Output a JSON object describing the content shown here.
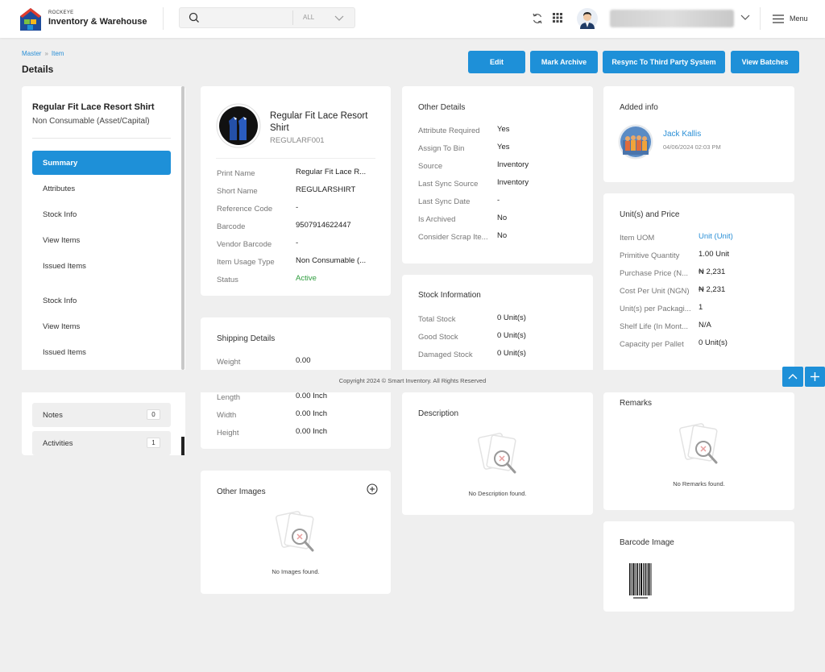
{
  "header": {
    "brand_sub": "ROCKEYE",
    "brand_name": "Inventory & Warehouse",
    "search_placeholder": "",
    "search_scope": "ALL",
    "menu_label": "Menu"
  },
  "breadcrumb": {
    "root": "Master",
    "current": "Item"
  },
  "page_title": "Details",
  "actions": {
    "edit": "Edit",
    "archive": "Mark Archive",
    "resync": "Resync To Third Party System",
    "batches": "View Batches"
  },
  "sidebar": {
    "title": "Regular Fit Lace Resort Shirt",
    "subtitle": "Non Consumable (Asset/Capital)",
    "items": [
      "Summary",
      "Attributes",
      "Stock Info",
      "View Items",
      "Issued Items",
      "Stock Info",
      "View Items",
      "Issued Items"
    ],
    "notes_label": "Notes",
    "notes_count": "0",
    "activities_label": "Activities",
    "activities_count": "1"
  },
  "item": {
    "name": "Regular Fit Lace Resort Shirt",
    "code": "REGULARF001",
    "fields": [
      {
        "label": "Print Name",
        "value": "Regular Fit Lace R..."
      },
      {
        "label": "Short Name",
        "value": "REGULARSHIRT"
      },
      {
        "label": "Reference Code",
        "value": "-"
      },
      {
        "label": "Barcode",
        "value": "9507914622447"
      },
      {
        "label": "Vendor Barcode",
        "value": "-"
      },
      {
        "label": "Item Usage Type",
        "value": "Non Consumable (..."
      },
      {
        "label": "Status",
        "value": "Active"
      }
    ]
  },
  "shipping": {
    "title": "Shipping Details",
    "fields": [
      {
        "label": "Weight",
        "value": "0.00"
      },
      {
        "label": "Length",
        "value": "0.00 Inch"
      },
      {
        "label": "Width",
        "value": "0.00 Inch"
      },
      {
        "label": "Height",
        "value": "0.00 Inch"
      }
    ]
  },
  "other_images": {
    "title": "Other Images",
    "empty": "No Images found."
  },
  "other_details": {
    "title": "Other Details",
    "fields": [
      {
        "label": "Attribute Required",
        "value": "Yes"
      },
      {
        "label": "Assign To Bin",
        "value": "Yes"
      },
      {
        "label": "Source",
        "value": "Inventory"
      },
      {
        "label": "Last Sync Source",
        "value": "Inventory"
      },
      {
        "label": "Last Sync Date",
        "value": "-"
      },
      {
        "label": "Is Archived",
        "value": "No"
      },
      {
        "label": "Consider Scrap Ite...",
        "value": "No"
      }
    ]
  },
  "stock": {
    "title": "Stock Information",
    "fields": [
      {
        "label": "Total Stock",
        "value": "0 Unit(s)"
      },
      {
        "label": "Good Stock",
        "value": "0 Unit(s)"
      },
      {
        "label": "Damaged Stock",
        "value": "0 Unit(s)"
      }
    ]
  },
  "description": {
    "title": "Description",
    "empty": "No Description found."
  },
  "added_info": {
    "title": "Added info",
    "user": "Jack Kallis",
    "date": "04/06/2024 02:03 PM"
  },
  "units": {
    "title": "Unit(s) and Price",
    "fields": [
      {
        "label": "Item UOM",
        "value": "Unit (Unit)"
      },
      {
        "label": "Primitive Quantity",
        "value": "1.00 Unit"
      },
      {
        "label": "Purchase Price (N...",
        "value": "₦ 2,231"
      },
      {
        "label": "Cost Per Unit (NGN)",
        "value": "₦ 2,231"
      },
      {
        "label": "Unit(s) per Packagi...",
        "value": "1"
      },
      {
        "label": "Shelf Life (In Mont...",
        "value": "N/A"
      },
      {
        "label": "Capacity per Pallet",
        "value": "0 Unit(s)"
      }
    ]
  },
  "remarks": {
    "title": "Remarks",
    "empty": "No Remarks found."
  },
  "barcode_image": {
    "title": "Barcode Image"
  },
  "footer": "Copyright 2024 © Smart Inventory. All Rights Reserved",
  "colors": {
    "accent": "#1e90d8",
    "active": "#2e9d3e",
    "background": "#efefef"
  }
}
